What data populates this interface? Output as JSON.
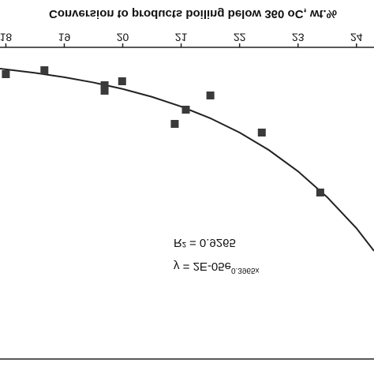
{
  "chart_data": {
    "type": "scatter",
    "title": "Conversion to products boiling below 360 oC, wt.%",
    "equation": "y = 2E-05e",
    "equation_exponent": "0.3965x",
    "r_squared": "R² = 0.9265",
    "x": [
      18.0,
      18.66,
      19.69,
      19.69,
      19.99,
      20.89,
      21.08,
      21.5,
      22.38,
      23.38
    ],
    "values": [
      0.0327,
      0.0266,
      0.0498,
      0.0583,
      0.0437,
      0.1096,
      0.0876,
      0.0656,
      0.123,
      0.2157
    ],
    "color": "#3a3a3a",
    "trendline": {
      "x": [
        17.9,
        18.5,
        19,
        19.5,
        20,
        20.5,
        21,
        21.5,
        22,
        22.5,
        23,
        23.5,
        24,
        24.3
      ],
      "values": [
        0.0242,
        0.0307,
        0.0374,
        0.0456,
        0.0556,
        0.0678,
        0.0828,
        0.1009,
        0.123,
        0.15,
        0.183,
        0.223,
        0.271,
        0.306
      ],
      "color": "#222222"
    },
    "xlim": [
      17.9,
      24.3
    ],
    "xticks": [
      18,
      19,
      20,
      21,
      22,
      23,
      24
    ],
    "ylim": [
      -0.01,
      0.5
    ]
  }
}
